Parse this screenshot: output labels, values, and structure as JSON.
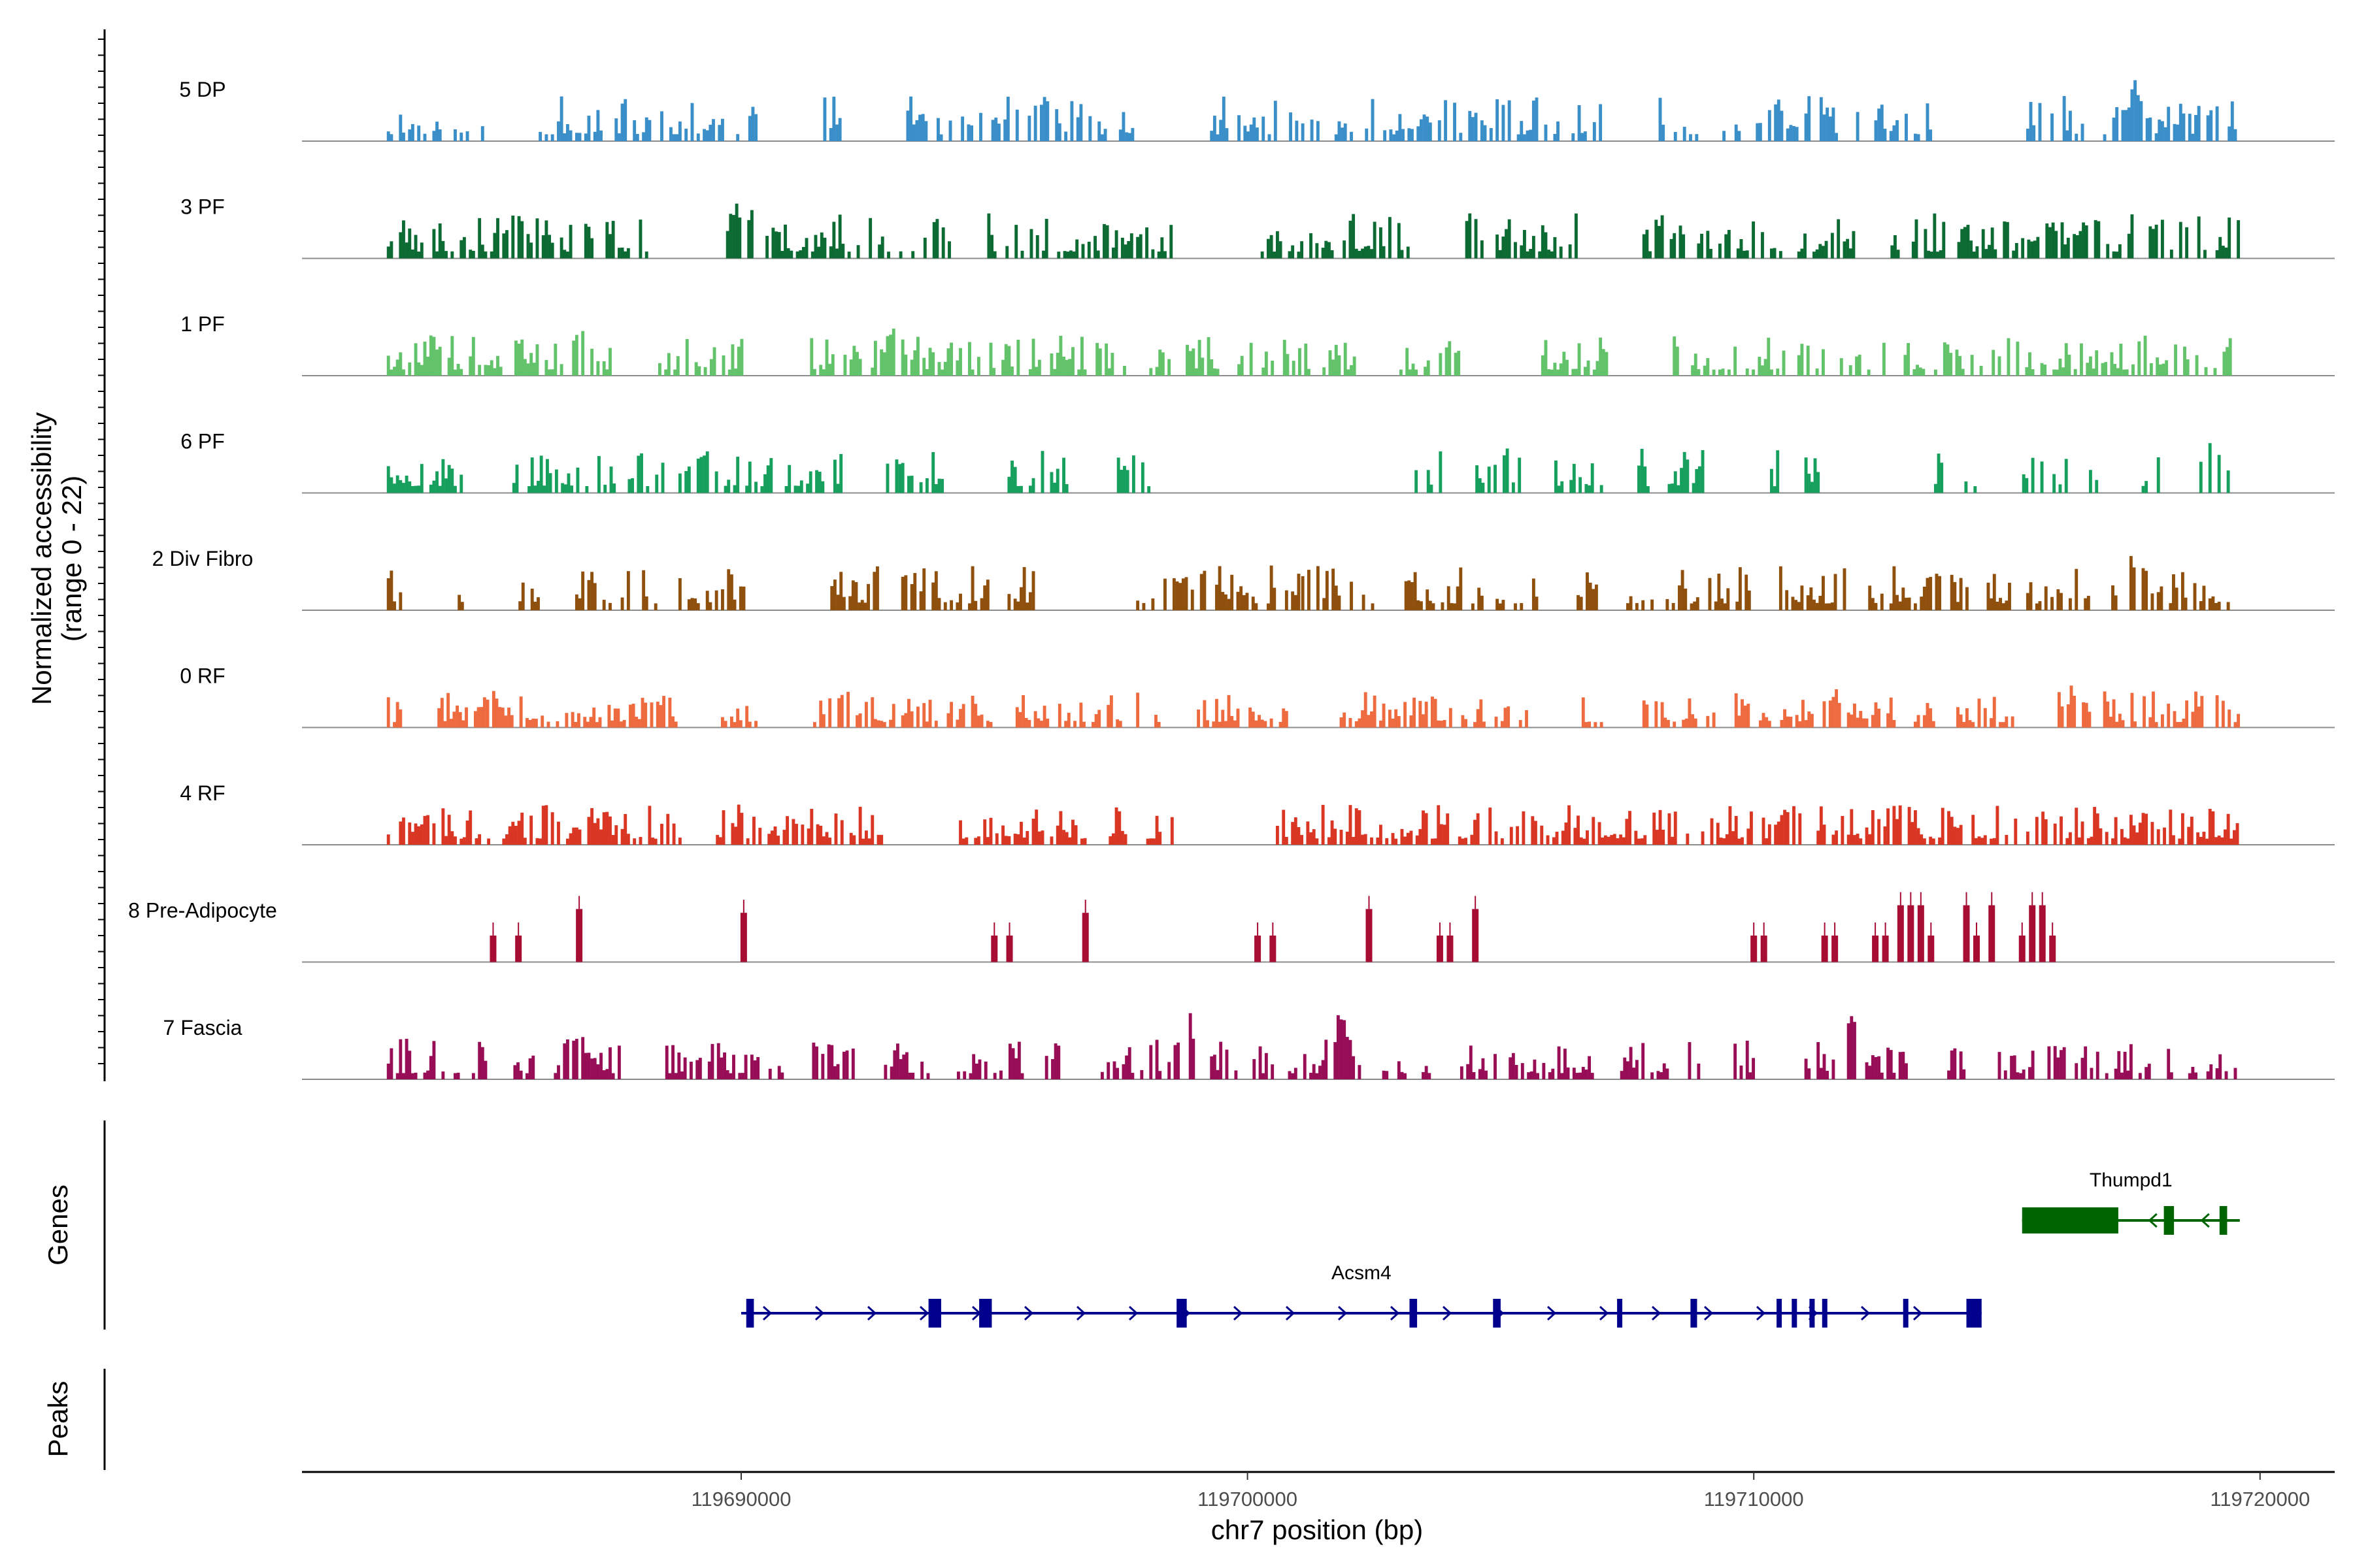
{
  "chart_data": {
    "type": "coverage",
    "region": {
      "chrom": "chr7",
      "start": 119681300,
      "end": 119721500
    },
    "ylabel": "Normalized accessibility",
    "ylabel_range": "(range 0 - 22)",
    "ylim": [
      0,
      22
    ],
    "xlabel": "chr7 position (bp)",
    "x_ticks": [
      119690000,
      119700000,
      119710000,
      119720000
    ],
    "x_tick_labels": [
      "119690000",
      "119700000",
      "119710000",
      "119720000"
    ],
    "tracks": [
      {
        "name": "5 DP",
        "color": "#3A8FC9",
        "seed": 11,
        "regions": [
          [
            119683000,
            119685000
          ],
          [
            119686000,
            119690300
          ],
          [
            119691500,
            119692000
          ],
          [
            119693200,
            119698000
          ],
          [
            119699200,
            119707000
          ],
          [
            119708000,
            119713500
          ],
          [
            119715200,
            119716500
          ],
          [
            119716900,
            119719500
          ]
        ],
        "density": 0.55,
        "max": 10,
        "peaks": [
          [
            119693500,
            8
          ],
          [
            119694800,
            9
          ],
          [
            119695800,
            10
          ],
          [
            119703500,
            8
          ],
          [
            119711000,
            7
          ],
          [
            119717500,
            14
          ],
          [
            119719000,
            9
          ]
        ]
      },
      {
        "name": "3 PF",
        "color": "#0C6A33",
        "seed": 23,
        "regions": [
          [
            119683000,
            119688200
          ],
          [
            119689700,
            119694100
          ],
          [
            119694800,
            119698500
          ],
          [
            119700200,
            119703200
          ],
          [
            119704300,
            119706500
          ],
          [
            119707800,
            119712000
          ],
          [
            119712700,
            119719600
          ]
        ],
        "density": 0.6,
        "max": 10,
        "peaks": [
          [
            119685500,
            12
          ],
          [
            119687200,
            11
          ],
          [
            119690000,
            17
          ],
          [
            119693800,
            11
          ],
          [
            119715800,
            9
          ],
          [
            119716600,
            11
          ],
          [
            119717600,
            16
          ]
        ]
      },
      {
        "name": "1 PF",
        "color": "#63C36B",
        "seed": 37,
        "regions": [
          [
            119683000,
            119687500
          ],
          [
            119688300,
            119690000
          ],
          [
            119691300,
            119697600
          ],
          [
            119698000,
            119699500
          ],
          [
            119699800,
            119702200
          ],
          [
            119703000,
            119704200
          ],
          [
            119705800,
            119707200
          ],
          [
            119708400,
            119719600
          ]
        ],
        "density": 0.6,
        "max": 9,
        "peaks": [
          [
            119686800,
            11
          ],
          [
            119693000,
            13
          ],
          [
            119704000,
            9
          ],
          [
            119718400,
            8
          ]
        ]
      },
      {
        "name": "6 PF",
        "color": "#17A05D",
        "seed": 49,
        "regions": [
          [
            119683000,
            119684500
          ],
          [
            119685300,
            119688500
          ],
          [
            119688700,
            119692000
          ],
          [
            119692800,
            119694000
          ],
          [
            119695200,
            119696500
          ],
          [
            119697300,
            119698200
          ],
          [
            119703300,
            119703800
          ],
          [
            119704500,
            119705400
          ],
          [
            119706000,
            119707000
          ],
          [
            119707700,
            119708000
          ],
          [
            119708300,
            119709000
          ],
          [
            119710200,
            119710500
          ],
          [
            119711000,
            119711300
          ],
          [
            119713500,
            119713800
          ],
          [
            119714100,
            119714400
          ],
          [
            119715300,
            119716200
          ],
          [
            119716500,
            119716800
          ],
          [
            119717600,
            119718000
          ],
          [
            119718800,
            119719400
          ]
        ],
        "density": 0.6,
        "max": 10,
        "peaks": [
          [
            119689100,
            10
          ],
          [
            119693000,
            10
          ],
          [
            119719000,
            16
          ]
        ]
      },
      {
        "name": "2 Div Fibro",
        "color": "#8F4F0D",
        "seed": 61,
        "regions": [
          [
            119683000,
            119683300
          ],
          [
            119684400,
            119684700
          ],
          [
            119685600,
            119686000
          ],
          [
            119686600,
            119688300
          ],
          [
            119688700,
            119690300
          ],
          [
            119691700,
            119692800
          ],
          [
            119693100,
            119695800
          ],
          [
            119697800,
            119701000
          ],
          [
            119701000,
            119702500
          ],
          [
            119703100,
            119705800
          ],
          [
            119706500,
            119707000
          ],
          [
            119707300,
            119708000
          ],
          [
            119708200,
            119710000
          ],
          [
            119710500,
            119712000
          ],
          [
            119712200,
            119714200
          ],
          [
            119714600,
            119716600
          ],
          [
            119717000,
            119719500
          ]
        ],
        "density": 0.6,
        "max": 10,
        "peaks": [
          [
            119698500,
            11
          ],
          [
            119699200,
            13
          ],
          [
            119713600,
            12
          ],
          [
            119717500,
            16
          ]
        ]
      },
      {
        "name": "0 RF",
        "color": "#EE6A3F",
        "seed": 73,
        "regions": [
          [
            119683000,
            119683500
          ],
          [
            119684000,
            119688700
          ],
          [
            119689600,
            119690300
          ],
          [
            119691300,
            119695000
          ],
          [
            119695300,
            119697500
          ],
          [
            119697800,
            119698400
          ],
          [
            119699000,
            119700800
          ],
          [
            119701700,
            119705500
          ],
          [
            119706600,
            119707000
          ],
          [
            119707800,
            119709300
          ],
          [
            119709500,
            119709900
          ],
          [
            119710100,
            119712800
          ],
          [
            119713100,
            119713700
          ],
          [
            119714000,
            119715200
          ],
          [
            119716000,
            119719600
          ]
        ],
        "density": 0.65,
        "max": 8,
        "peaks": [
          [
            119685000,
            10
          ],
          [
            119692000,
            9
          ],
          [
            119711600,
            10
          ],
          [
            119716300,
            11
          ],
          [
            119719000,
            12
          ]
        ]
      },
      {
        "name": "4 RF",
        "color": "#D93624",
        "seed": 89,
        "regions": [
          [
            119683000,
            119688800
          ],
          [
            119689500,
            119692800
          ],
          [
            119694300,
            119696800
          ],
          [
            119697200,
            119697600
          ],
          [
            119698000,
            119698500
          ],
          [
            119700500,
            119719600
          ]
        ],
        "density": 0.65,
        "max": 9,
        "peaks": [
          [
            119683800,
            8
          ],
          [
            119687000,
            9
          ],
          [
            119705500,
            11
          ],
          [
            119710700,
            12
          ],
          [
            119712900,
            11
          ],
          [
            119715700,
            9
          ]
        ]
      },
      {
        "name": "8 Pre-Adipocyte",
        "color": "#A70C33",
        "seed": 97,
        "regions": [],
        "density": 0,
        "max": 0,
        "spikes": [
          [
            119685100,
            14
          ],
          [
            119685600,
            14
          ],
          [
            119686800,
            28
          ],
          [
            119690050,
            26
          ],
          [
            119695000,
            14
          ],
          [
            119695300,
            14
          ],
          [
            119696800,
            26
          ],
          [
            119700200,
            14
          ],
          [
            119700500,
            14
          ],
          [
            119702400,
            28
          ],
          [
            119703800,
            14
          ],
          [
            119704000,
            14
          ],
          [
            119704500,
            28
          ],
          [
            119710000,
            14
          ],
          [
            119710200,
            14
          ],
          [
            119711400,
            14
          ],
          [
            119711600,
            14
          ],
          [
            119712400,
            14
          ],
          [
            119712600,
            14
          ],
          [
            119712900,
            30
          ],
          [
            119713100,
            30
          ],
          [
            119713300,
            30
          ],
          [
            119713500,
            14
          ],
          [
            119714200,
            30
          ],
          [
            119714400,
            14
          ],
          [
            119714700,
            30
          ],
          [
            119715300,
            14
          ],
          [
            119715500,
            30
          ],
          [
            119715700,
            30
          ],
          [
            119715900,
            14
          ]
        ]
      },
      {
        "name": "7 Fascia",
        "color": "#970E57",
        "seed": 113,
        "regions": [
          [
            119683000,
            119685100
          ],
          [
            119685500,
            119686000
          ],
          [
            119686300,
            119687700
          ],
          [
            119688500,
            119690800
          ],
          [
            119691400,
            119692200
          ],
          [
            119692700,
            119693700
          ],
          [
            119694200,
            119695700
          ],
          [
            119696000,
            119696300
          ],
          [
            119697100,
            119700500
          ],
          [
            119700800,
            119702300
          ],
          [
            119702600,
            119703600
          ],
          [
            119704200,
            119706800
          ],
          [
            119707300,
            119708300
          ],
          [
            119708700,
            119709000
          ],
          [
            119709600,
            119710000
          ],
          [
            119711000,
            119712000
          ],
          [
            119712200,
            119713000
          ],
          [
            119713700,
            119714300
          ],
          [
            119714700,
            119715600
          ],
          [
            119715800,
            119717800
          ],
          [
            119718100,
            119719600
          ]
        ],
        "density": 0.6,
        "max": 9,
        "peaks": [
          [
            119686800,
            12
          ],
          [
            119698800,
            16
          ],
          [
            119701800,
            16
          ],
          [
            119711900,
            15
          ],
          [
            119715800,
            12
          ]
        ]
      }
    ],
    "genes_label": "Genes",
    "peaks_label": "Peaks",
    "genes": [
      {
        "name": "Acsm4",
        "strand": "+",
        "color": "#00008C",
        "start": 119690000,
        "end": 119714500,
        "exons": [
          [
            119690100,
            119690250
          ],
          [
            119693700,
            119693950
          ],
          [
            119694700,
            119694950
          ],
          [
            119698600,
            119698800
          ],
          [
            119703200,
            119703350
          ],
          [
            119704850,
            119705000
          ],
          [
            119707300,
            119707380
          ],
          [
            119708750,
            119708880
          ],
          [
            119710450,
            119710530
          ],
          [
            119710750,
            119710830
          ],
          [
            119711100,
            119711200
          ],
          [
            119711350,
            119711450
          ],
          [
            119712950,
            119713050
          ],
          [
            119714200,
            119714500
          ]
        ]
      },
      {
        "name": "Thumpd1",
        "strand": "-",
        "color": "#006400",
        "start": 119715300,
        "end": 119719600,
        "exons": [
          [
            119715300,
            119717200
          ],
          [
            119718100,
            119718300
          ],
          [
            119719200,
            119719350
          ]
        ]
      }
    ]
  }
}
